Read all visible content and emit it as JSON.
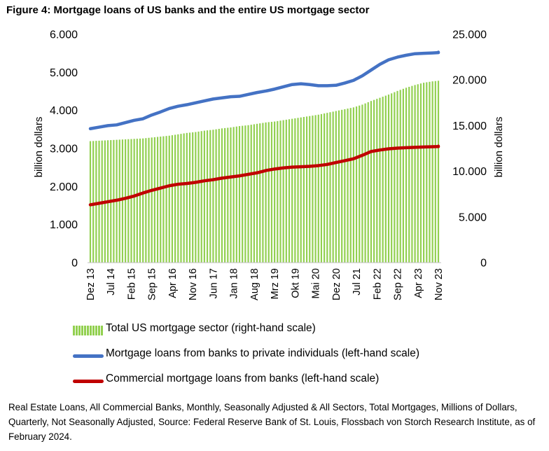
{
  "title": "Figure 4: Mortgage loans of US banks and the entire US mortgage sector",
  "chart_data": {
    "type": "bar+line",
    "x_tick_labels": [
      "Dez 13",
      "Jul 14",
      "Feb 15",
      "Sep 15",
      "Apr 16",
      "Nov 16",
      "Jun 17",
      "Jan 18",
      "Aug 18",
      "Mrz 19",
      "Okt 19",
      "Mai 20",
      "Dez 20",
      "Jul 21",
      "Feb 22",
      "Sep 22",
      "Apr 23",
      "Nov 23"
    ],
    "y_left": {
      "label": "billion dollars",
      "min": 0,
      "max": 6000,
      "ticks": [
        "0",
        "1.000",
        "2.000",
        "3.000",
        "4.000",
        "5.000",
        "6.000"
      ]
    },
    "y_right": {
      "label": "billion dollars",
      "min": 0,
      "max": 25000,
      "ticks": [
        "0",
        "5.000",
        "10.000",
        "15.000",
        "20.000",
        "25.000"
      ]
    },
    "series": [
      {
        "name": "Total US mortgage sector (right-hand scale)",
        "type": "bar",
        "axis": "right",
        "color": "#92D050",
        "x_start": 0,
        "x_step": 3,
        "values": [
          13300,
          13350,
          13400,
          13450,
          13500,
          13550,
          13600,
          13700,
          13800,
          13900,
          14050,
          14200,
          14300,
          14450,
          14550,
          14700,
          14800,
          14950,
          15050,
          15200,
          15350,
          15450,
          15600,
          15750,
          15900,
          16050,
          16200,
          16400,
          16600,
          16800,
          17000,
          17300,
          17700,
          18050,
          18400,
          18800,
          19150,
          19450,
          19700,
          19850,
          19950,
          20000,
          20050,
          20100
        ]
      },
      {
        "name": "Mortgage loans from banks to private individuals (left-hand scale)",
        "type": "line",
        "axis": "left",
        "color": "#4472C4",
        "x_start": 0,
        "x_step": 3,
        "values": [
          3520,
          3560,
          3600,
          3620,
          3680,
          3740,
          3780,
          3880,
          3960,
          4050,
          4110,
          4150,
          4200,
          4250,
          4300,
          4330,
          4360,
          4370,
          4420,
          4470,
          4510,
          4560,
          4620,
          4680,
          4700,
          4680,
          4650,
          4650,
          4660,
          4720,
          4790,
          4910,
          5060,
          5210,
          5330,
          5400,
          5450,
          5490,
          5500,
          5510,
          5520,
          5520,
          5530,
          5530
        ]
      },
      {
        "name": "Commercial mortgage loans from banks (left-hand scale)",
        "type": "line",
        "axis": "left",
        "color": "#C00000",
        "x_start": 0,
        "x_step": 3,
        "values": [
          1520,
          1560,
          1600,
          1640,
          1690,
          1750,
          1830,
          1900,
          1960,
          2020,
          2060,
          2080,
          2110,
          2150,
          2180,
          2220,
          2250,
          2280,
          2320,
          2360,
          2420,
          2460,
          2490,
          2510,
          2520,
          2530,
          2550,
          2580,
          2630,
          2680,
          2730,
          2820,
          2920,
          2960,
          2990,
          3010,
          3020,
          3030,
          3040,
          3045,
          3050,
          3050,
          3055,
          3060
        ]
      }
    ]
  },
  "legend": [
    {
      "label": "Total US mortgage sector (right-hand scale)",
      "color": "#92D050",
      "kind": "bar"
    },
    {
      "label": "Mortgage loans from banks to private individuals (left-hand scale)",
      "color": "#4472C4",
      "kind": "line"
    },
    {
      "label": "Commercial mortgage loans from banks (left-hand scale)",
      "color": "#C00000",
      "kind": "line"
    }
  ],
  "source": "Real Estate Loans, All Commercial Banks, Monthly, Seasonally Adjusted & All Sectors, Total Mortgages, Millions of Dollars, Quarterly, Not Seasonally Adjusted, Source: Federal Reserve Bank of St. Louis, Flossbach von Storch Research Institute, as of February 2024."
}
